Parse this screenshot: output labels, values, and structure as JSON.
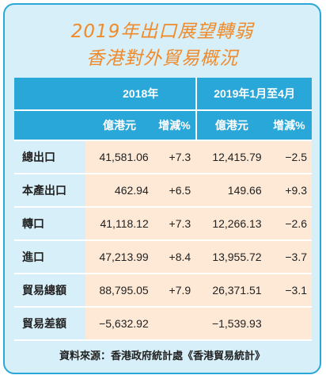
{
  "title_line1": "2019年出口展望轉弱",
  "title_line2": "香港對外貿易概況",
  "header": {
    "period1": "2018年",
    "period2": "2019年1月至4月",
    "col_value": "億港元",
    "col_change": "增減%"
  },
  "rows": [
    {
      "label": "總出口",
      "v2018": "41,581.06",
      "c2018": "+7.3",
      "v2019": "12,415.79",
      "c2019": "−2.5"
    },
    {
      "label": "本產出口",
      "v2018": "462.94",
      "c2018": "+6.5",
      "v2019": "149.66",
      "c2019": "+9.3"
    },
    {
      "label": "轉口",
      "v2018": "41,118.12",
      "c2018": "+7.3",
      "v2019": "12,266.13",
      "c2019": "−2.6"
    },
    {
      "label": "進口",
      "v2018": "47,213.99",
      "c2018": "+8.4",
      "v2019": "13,955.72",
      "c2019": "−3.7"
    },
    {
      "label": "貿易總額",
      "v2018": "88,795.05",
      "c2018": "+7.9",
      "v2019": "26,371.51",
      "c2019": "−3.1"
    },
    {
      "label": "貿易差額",
      "v2018": "−5,632.92",
      "c2018": "",
      "v2019": "−1,539.93",
      "c2019": ""
    }
  ],
  "source": "資料來源：香港政府統計處《香港貿易統計》",
  "colors": {
    "accent": "#2aa7d9",
    "title": "#f08a2a",
    "cell": "#fde9d6",
    "background": "#d7eff8"
  }
}
